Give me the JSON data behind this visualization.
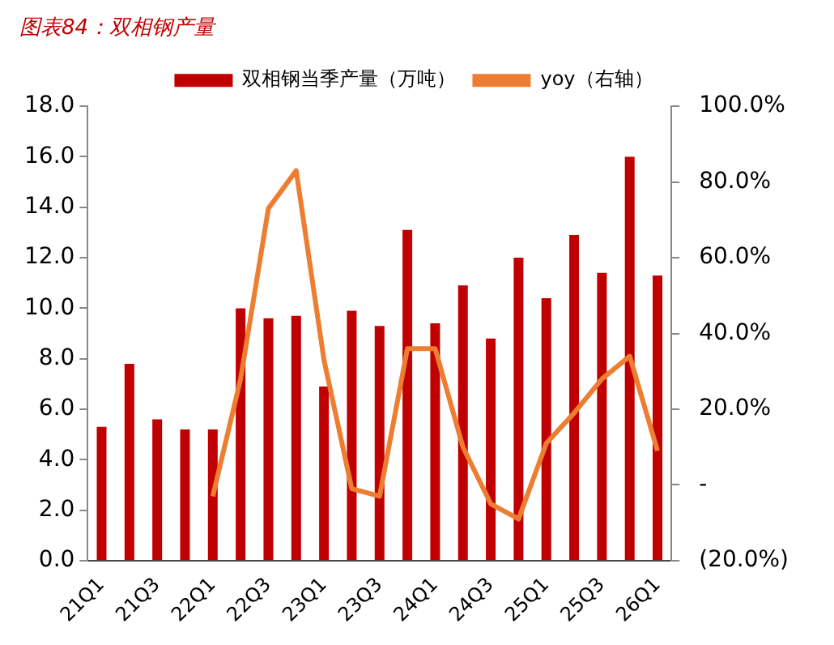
{
  "chart_data": {
    "type": "bar",
    "title": "图表84：双相钢产量",
    "categories": [
      "21Q1",
      null,
      "21Q3",
      null,
      "22Q1",
      null,
      "22Q3",
      null,
      "23Q1",
      null,
      "23Q3",
      null,
      "24Q1",
      null,
      "24Q3",
      null,
      "25Q1",
      null,
      "25Q3",
      null,
      "26Q1"
    ],
    "series": [
      {
        "name": "双相钢当季产量（万吨）",
        "color": "#c00000",
        "values": [
          5.3,
          7.8,
          5.6,
          5.2,
          5.2,
          10.0,
          9.6,
          9.7,
          6.9,
          9.9,
          9.3,
          13.1,
          9.4,
          10.9,
          8.8,
          12.0,
          10.4,
          12.9,
          11.4,
          16.0,
          11.3
        ]
      },
      {
        "name": "yoy（右轴）",
        "type": "line",
        "axis": "y2",
        "color": "#ed7d31",
        "values": [
          null,
          null,
          null,
          null,
          -3,
          28,
          73,
          83,
          33,
          -1,
          -3,
          36,
          36,
          10,
          -5,
          -9,
          11,
          19,
          28,
          34,
          9
        ]
      }
    ],
    "ylim": [
      0,
      18
    ],
    "yticks": [
      {
        "value": 0,
        "label": "0.0"
      },
      {
        "value": 2,
        "label": "2.0"
      },
      {
        "value": 4,
        "label": "4.0"
      },
      {
        "value": 6,
        "label": "6.0"
      },
      {
        "value": 8,
        "label": "8.0"
      },
      {
        "value": 10,
        "label": "10.0"
      },
      {
        "value": 12,
        "label": "12.0"
      },
      {
        "value": 14,
        "label": "14.0"
      },
      {
        "value": 16,
        "label": "16.0"
      },
      {
        "value": 18,
        "label": "18.0"
      }
    ],
    "y2lim": [
      -20,
      100
    ],
    "y2ticks": [
      {
        "value": -20,
        "label": "(20.0%)"
      },
      {
        "value": 0,
        "label": "-"
      },
      {
        "value": 20,
        "label": "20.0%"
      },
      {
        "value": 40,
        "label": "40.0%"
      },
      {
        "value": 60,
        "label": "60.0%"
      },
      {
        "value": 80,
        "label": "80.0%"
      },
      {
        "value": 100,
        "label": "100.0%"
      }
    ],
    "grid": false,
    "legend": "top",
    "marker": "none",
    "line_style": "solid"
  }
}
